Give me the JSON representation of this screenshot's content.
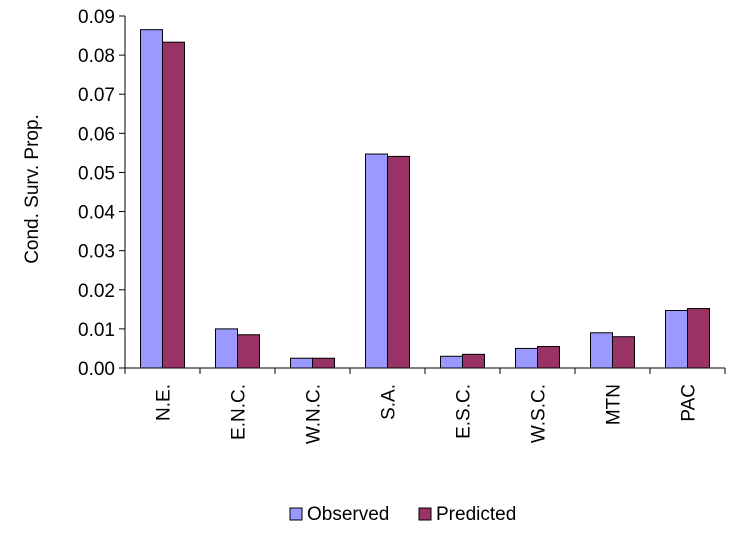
{
  "chart_data": {
    "type": "bar",
    "title": "",
    "xlabel": "",
    "ylabel": "Cond. Surv. Prop.",
    "ylim": [
      0,
      0.09
    ],
    "yticks": [
      "0.00",
      "0.01",
      "0.02",
      "0.03",
      "0.04",
      "0.05",
      "0.06",
      "0.07",
      "0.08",
      "0.09"
    ],
    "grid": false,
    "legend_position": "bottom",
    "categories": [
      "N.E.",
      "E.N.C.",
      "W.N.C.",
      "S.A.",
      "E.S.C.",
      "W.S.C.",
      "MTN",
      "PAC"
    ],
    "series": [
      {
        "name": "Observed",
        "color": "#9999ff",
        "values": [
          0.0865,
          0.01,
          0.0025,
          0.0547,
          0.003,
          0.005,
          0.009,
          0.0147
        ]
      },
      {
        "name": "Predicted",
        "color": "#993366",
        "values": [
          0.0833,
          0.0085,
          0.0025,
          0.0541,
          0.0035,
          0.0055,
          0.008,
          0.0152
        ]
      }
    ]
  }
}
